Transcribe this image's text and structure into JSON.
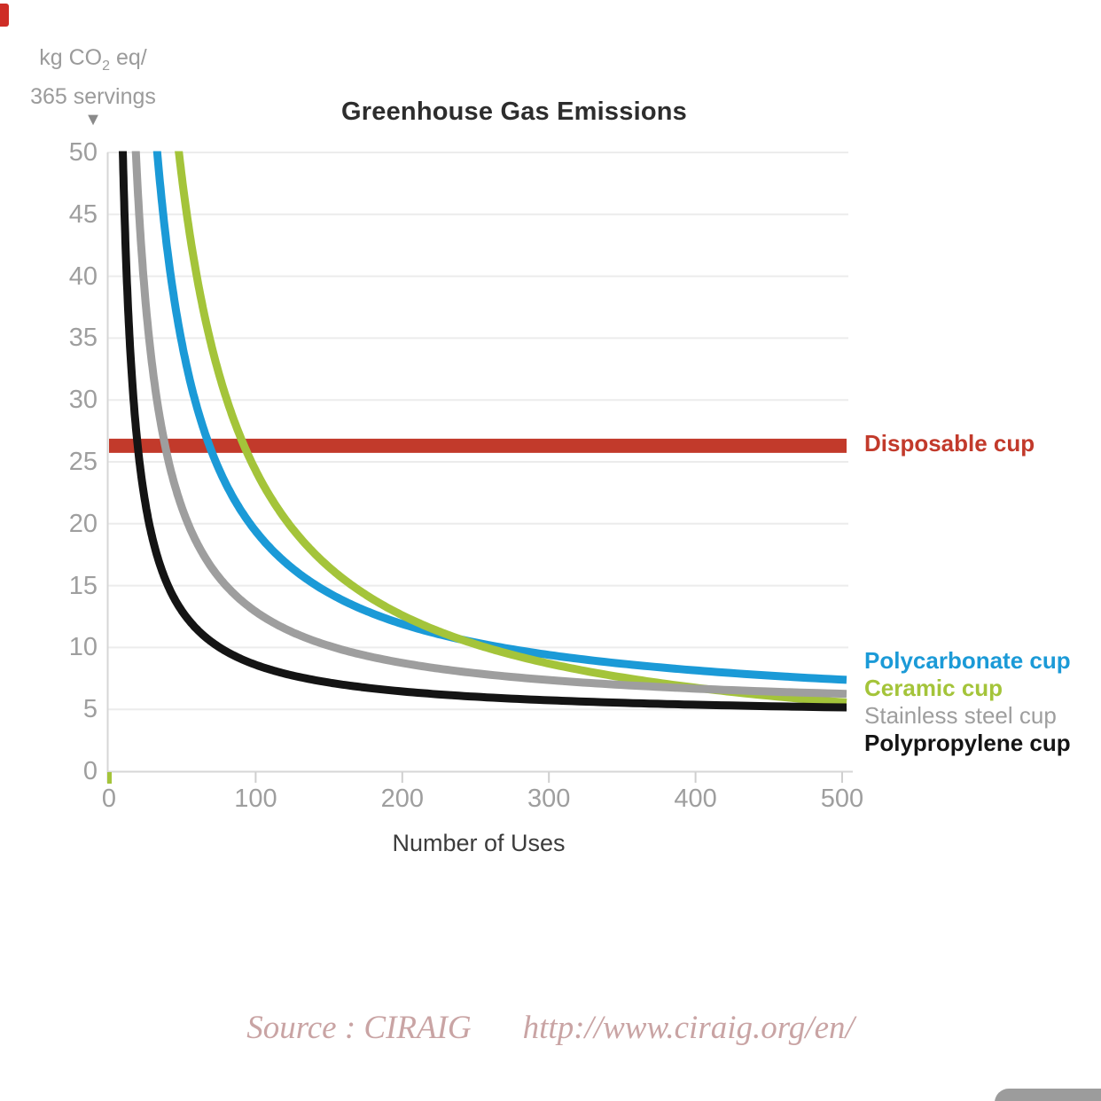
{
  "chart": {
    "y_unit": {
      "pre": "kg CO",
      "sub": "2",
      "post": " eq/",
      "line2": "365 servings"
    },
    "pointer_glyph": "▼"
  },
  "source": {
    "label": "Source : CIRAIG",
    "url": "http://www.ciraig.org/en/"
  },
  "chart_data": {
    "type": "line",
    "title": "Greenhouse Gas Emissions",
    "xlabel": "Number of Uses",
    "ylabel": "kg CO2 eq / 365 servings",
    "xlim": [
      0,
      500
    ],
    "ylim": [
      0,
      50
    ],
    "x_ticks": [
      0,
      100,
      200,
      300,
      400,
      500
    ],
    "y_ticks": [
      0,
      5,
      10,
      15,
      20,
      25,
      30,
      35,
      40,
      45,
      50
    ],
    "grid": "horizontal",
    "legend_position": "right of plot, colored text labels",
    "series": [
      {
        "name": "Disposable cup",
        "color": "#c23a2b",
        "bold": true,
        "model": "constant",
        "value": 26.3,
        "line_width": 16,
        "points": [
          [
            0,
            26.3
          ],
          [
            500,
            26.3
          ]
        ]
      },
      {
        "name": "Polycarbonate cup",
        "color": "#1b9ad7",
        "bold": true,
        "model": "y = a + b/x",
        "a": 4.4,
        "b": 1500,
        "line_width": 9,
        "points": [
          [
            50,
            34.4
          ],
          [
            100,
            19.4
          ],
          [
            200,
            11.9
          ],
          [
            300,
            9.4
          ],
          [
            400,
            8.2
          ],
          [
            500,
            7.4
          ]
        ]
      },
      {
        "name": "Ceramic cup",
        "color": "#a4c43a",
        "bold": true,
        "model": "y = a + b/x",
        "a": 0.9,
        "b": 2340,
        "line_width": 9,
        "points": [
          [
            50,
            47.7
          ],
          [
            100,
            24.3
          ],
          [
            200,
            12.6
          ],
          [
            300,
            8.7
          ],
          [
            400,
            6.8
          ],
          [
            500,
            5.6
          ]
        ]
      },
      {
        "name": "Stainless steel cup",
        "color": "#9e9e9e",
        "bold": false,
        "model": "y = a + b/x",
        "a": 4.6,
        "b": 830,
        "line_width": 9,
        "points": [
          [
            50,
            21.2
          ],
          [
            100,
            12.9
          ],
          [
            200,
            8.8
          ],
          [
            300,
            7.4
          ],
          [
            400,
            6.7
          ],
          [
            500,
            6.3
          ]
        ]
      },
      {
        "name": "Polypropylene cup",
        "color": "#141414",
        "bold": true,
        "model": "y = a + b/x",
        "a": 4.3,
        "b": 430,
        "line_width": 9,
        "points": [
          [
            50,
            12.9
          ],
          [
            100,
            8.6
          ],
          [
            200,
            6.5
          ],
          [
            300,
            5.7
          ],
          [
            400,
            5.4
          ],
          [
            500,
            5.2
          ]
        ]
      }
    ]
  }
}
